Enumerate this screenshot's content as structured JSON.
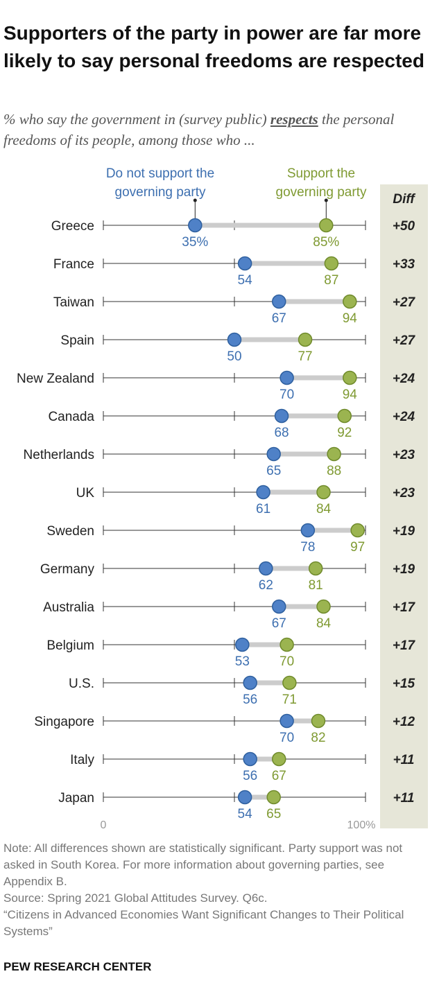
{
  "title": "Supporters of the party in power are far more likely to say personal freedoms are respected",
  "subtitle": {
    "before": "% who say the government in (survey public) ",
    "emphasis": "respects",
    "after": " the personal freedoms of its people, among those who ..."
  },
  "legend": {
    "not_support": [
      "Do not support the",
      "governing party"
    ],
    "support": [
      "Support the",
      "governing party"
    ]
  },
  "diff_header": "Diff",
  "colors": {
    "not_support": "#4f81c7",
    "support": "#9bb450",
    "not_support_text": "#3d6fb0",
    "support_text": "#7f9a32",
    "diff_bg": "#e6e6d8",
    "connector": "#cccccc"
  },
  "chart_data": {
    "type": "dot-range",
    "xlim": [
      0,
      100
    ],
    "tick_labels": [
      "0",
      "100%"
    ],
    "series": [
      {
        "name": "Do not support the governing party"
      },
      {
        "name": "Support the governing party"
      }
    ],
    "rows": [
      {
        "country": "Greece",
        "not_support": 35,
        "support": 85,
        "not_label": "35%",
        "sup_label": "85%",
        "diff": "+50"
      },
      {
        "country": "France",
        "not_support": 54,
        "support": 87,
        "not_label": "54",
        "sup_label": "87",
        "diff": "+33"
      },
      {
        "country": "Taiwan",
        "not_support": 67,
        "support": 94,
        "not_label": "67",
        "sup_label": "94",
        "diff": "+27"
      },
      {
        "country": "Spain",
        "not_support": 50,
        "support": 77,
        "not_label": "50",
        "sup_label": "77",
        "diff": "+27"
      },
      {
        "country": "New Zealand",
        "not_support": 70,
        "support": 94,
        "not_label": "70",
        "sup_label": "94",
        "diff": "+24"
      },
      {
        "country": "Canada",
        "not_support": 68,
        "support": 92,
        "not_label": "68",
        "sup_label": "92",
        "diff": "+24"
      },
      {
        "country": "Netherlands",
        "not_support": 65,
        "support": 88,
        "not_label": "65",
        "sup_label": "88",
        "diff": "+23"
      },
      {
        "country": "UK",
        "not_support": 61,
        "support": 84,
        "not_label": "61",
        "sup_label": "84",
        "diff": "+23"
      },
      {
        "country": "Sweden",
        "not_support": 78,
        "support": 97,
        "not_label": "78",
        "sup_label": "97",
        "diff": "+19"
      },
      {
        "country": "Germany",
        "not_support": 62,
        "support": 81,
        "not_label": "62",
        "sup_label": "81",
        "diff": "+19"
      },
      {
        "country": "Australia",
        "not_support": 67,
        "support": 84,
        "not_label": "67",
        "sup_label": "84",
        "diff": "+17"
      },
      {
        "country": "Belgium",
        "not_support": 53,
        "support": 70,
        "not_label": "53",
        "sup_label": "70",
        "diff": "+17"
      },
      {
        "country": "U.S.",
        "not_support": 56,
        "support": 71,
        "not_label": "56",
        "sup_label": "71",
        "diff": "+15"
      },
      {
        "country": "Singapore",
        "not_support": 70,
        "support": 82,
        "not_label": "70",
        "sup_label": "82",
        "diff": "+12"
      },
      {
        "country": "Italy",
        "not_support": 56,
        "support": 67,
        "not_label": "56",
        "sup_label": "67",
        "diff": "+11"
      },
      {
        "country": "Japan",
        "not_support": 54,
        "support": 65,
        "not_label": "54",
        "sup_label": "65",
        "diff": "+11"
      }
    ]
  },
  "notes": {
    "note": "Note: All differences shown are statistically significant. Party support was not asked in South Korea. For more information about governing parties, see Appendix B.",
    "source": "Source: Spring 2021 Global Attitudes Survey. Q6c.",
    "report": "“Citizens in Advanced Economies Want Significant Changes to Their Political Systems”"
  },
  "brand": "PEW RESEARCH CENTER"
}
